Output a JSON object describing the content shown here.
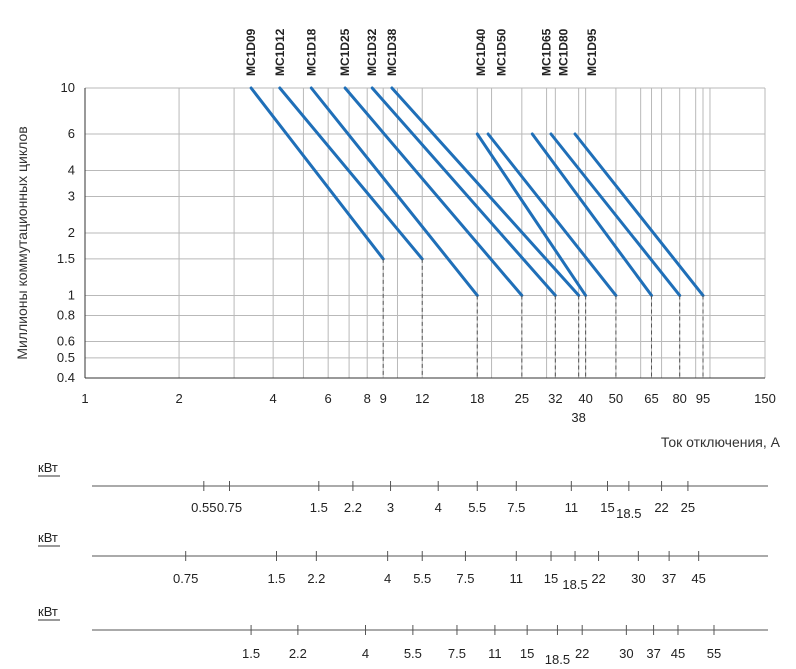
{
  "chart_data": {
    "type": "line",
    "ylabel": "Миллионы коммутационных циклов",
    "xlabel": "Ток отключения, А",
    "x_scale": "log",
    "y_scale": "log",
    "xlim": [
      1,
      150
    ],
    "ylim": [
      0.4,
      10
    ],
    "x_ticks": [
      {
        "v": 1,
        "label": "1"
      },
      {
        "v": 2,
        "label": "2"
      },
      {
        "v": 4,
        "label": "4"
      },
      {
        "v": 6,
        "label": "6"
      },
      {
        "v": 8,
        "label": "8"
      },
      {
        "v": 9,
        "label": "9"
      },
      {
        "v": 12,
        "label": "12"
      },
      {
        "v": 18,
        "label": "18"
      },
      {
        "v": 25,
        "label": "25"
      },
      {
        "v": 32,
        "label": "32"
      },
      {
        "v": 38,
        "label": "38",
        "below": true
      },
      {
        "v": 40,
        "label": "40"
      },
      {
        "v": 50,
        "label": "50"
      },
      {
        "v": 65,
        "label": "65"
      },
      {
        "v": 80,
        "label": "80"
      },
      {
        "v": 95,
        "label": "95"
      },
      {
        "v": 150,
        "label": "150"
      }
    ],
    "y_ticks": [
      {
        "v": 10,
        "label": "10"
      },
      {
        "v": 6,
        "label": "6"
      },
      {
        "v": 4,
        "label": "4"
      },
      {
        "v": 3,
        "label": "3"
      },
      {
        "v": 2,
        "label": "2"
      },
      {
        "v": 1.5,
        "label": "1.5"
      },
      {
        "v": 1,
        "label": "1"
      },
      {
        "v": 0.8,
        "label": "0.8"
      },
      {
        "v": 0.6,
        "label": "0.6"
      },
      {
        "v": 0.5,
        "label": "0.5"
      },
      {
        "v": 0.4,
        "label": "0.4"
      }
    ],
    "grid_x": [
      3,
      4,
      5,
      6,
      7,
      8,
      9,
      10,
      20,
      30,
      40,
      50,
      60,
      70,
      80,
      90,
      100
    ],
    "series": [
      {
        "name": "MC1D09",
        "x": [
          3.4,
          9
        ],
        "y": [
          10,
          1.5
        ]
      },
      {
        "name": "MC1D12",
        "x": [
          4.2,
          12
        ],
        "y": [
          10,
          1.5
        ]
      },
      {
        "name": "MC1D18",
        "x": [
          5.3,
          18
        ],
        "y": [
          10,
          1
        ]
      },
      {
        "name": "MC1D25",
        "x": [
          6.8,
          25
        ],
        "y": [
          10,
          1
        ]
      },
      {
        "name": "MC1D32",
        "x": [
          8.3,
          32
        ],
        "y": [
          10,
          1
        ]
      },
      {
        "name": "MC1D38",
        "x": [
          9.6,
          38
        ],
        "y": [
          10,
          1
        ]
      },
      {
        "name": "MC1D40",
        "x": [
          18,
          40
        ],
        "y": [
          6,
          1
        ]
      },
      {
        "name": "MC1D50",
        "x": [
          19.5,
          50
        ],
        "y": [
          6,
          1
        ]
      },
      {
        "name": "MC1D65",
        "x": [
          27,
          65
        ],
        "y": [
          6,
          1
        ]
      },
      {
        "name": "MC1D80",
        "x": [
          31,
          80
        ],
        "y": [
          6,
          1
        ]
      },
      {
        "name": "MC1D95",
        "x": [
          37,
          95
        ],
        "y": [
          6,
          1
        ]
      }
    ],
    "model_labels": [
      {
        "text": "MC1D09",
        "x": 3.4
      },
      {
        "text": "MC1D12",
        "x": 4.2
      },
      {
        "text": "MC1D18",
        "x": 5.3
      },
      {
        "text": "MC1D25",
        "x": 6.8
      },
      {
        "text": "MC1D32",
        "x": 8.3
      },
      {
        "text": "MC1D38",
        "x": 9.6
      },
      {
        "text": "MC1D40",
        "x": 18.5
      },
      {
        "text": "MC1D50",
        "x": 21.5
      },
      {
        "text": "MC1D65",
        "x": 30
      },
      {
        "text": "MC1D80",
        "x": 34
      },
      {
        "text": "MC1D95",
        "x": 42
      }
    ],
    "power_scales": [
      {
        "unit": "кВт",
        "values": [
          {
            "label": "0.55",
            "x": 2.4
          },
          {
            "label": "0.75",
            "x": 2.9
          },
          {
            "label": "1.5",
            "x": 5.6
          },
          {
            "label": "2.2",
            "x": 7.2
          },
          {
            "label": "3",
            "x": 9.5
          },
          {
            "label": "4",
            "x": 13.5
          },
          {
            "label": "5.5",
            "x": 18
          },
          {
            "label": "7.5",
            "x": 24
          },
          {
            "label": "11",
            "x": 36
          },
          {
            "label": "15",
            "x": 47
          },
          {
            "label": "18.5",
            "x": 55,
            "sub": true
          },
          {
            "label": "22",
            "x": 70
          },
          {
            "label": "25",
            "x": 85
          }
        ]
      },
      {
        "unit": "кВт",
        "values": [
          {
            "label": "0.75",
            "x": 2.1
          },
          {
            "label": "1.5",
            "x": 4.1
          },
          {
            "label": "2.2",
            "x": 5.5
          },
          {
            "label": "4",
            "x": 9.3
          },
          {
            "label": "5.5",
            "x": 12
          },
          {
            "label": "7.5",
            "x": 16.5
          },
          {
            "label": "11",
            "x": 24
          },
          {
            "label": "15",
            "x": 31
          },
          {
            "label": "18.5",
            "x": 37,
            "sub": true
          },
          {
            "label": "22",
            "x": 44
          },
          {
            "label": "30",
            "x": 59
          },
          {
            "label": "37",
            "x": 74
          },
          {
            "label": "45",
            "x": 92
          }
        ]
      },
      {
        "unit": "кВт",
        "values": [
          {
            "label": "1.5",
            "x": 3.4
          },
          {
            "label": "2.2",
            "x": 4.8
          },
          {
            "label": "4",
            "x": 7.9
          },
          {
            "label": "5.5",
            "x": 11.2
          },
          {
            "label": "7.5",
            "x": 15.5
          },
          {
            "label": "11",
            "x": 20.5
          },
          {
            "label": "15",
            "x": 26
          },
          {
            "label": "18.5",
            "x": 32.5,
            "sub": true
          },
          {
            "label": "22",
            "x": 39
          },
          {
            "label": "30",
            "x": 54
          },
          {
            "label": "37",
            "x": 66
          },
          {
            "label": "45",
            "x": 79
          },
          {
            "label": "55",
            "x": 103
          }
        ]
      }
    ]
  }
}
